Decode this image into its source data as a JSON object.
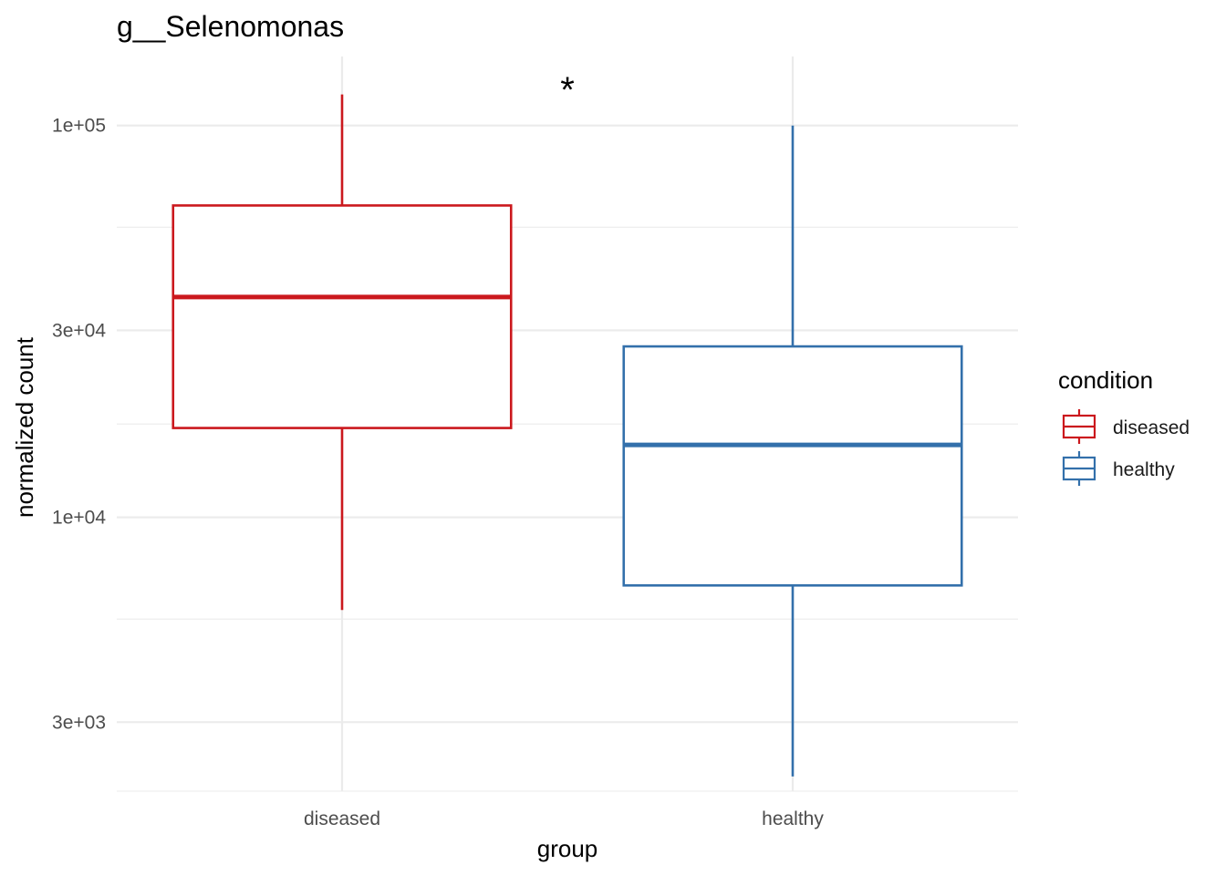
{
  "chart_data": {
    "type": "boxplot",
    "title": "g__Selenomonas",
    "xlabel": "group",
    "ylabel": "normalized count",
    "y_scale": "log10",
    "ylim": [
      2000,
      150000
    ],
    "y_major_ticks": [
      {
        "value": 3000,
        "label": "3e+03"
      },
      {
        "value": 10000,
        "label": "1e+04"
      },
      {
        "value": 30000,
        "label": "3e+04"
      },
      {
        "value": 100000,
        "label": "1e+05"
      }
    ],
    "y_minor_ticks": [
      2000,
      5500,
      17300,
      55000
    ],
    "categories": [
      "diseased",
      "healthy"
    ],
    "boxes": [
      {
        "category": "diseased",
        "whisker_low": 5800,
        "q1": 16900,
        "median": 36500,
        "q3": 62500,
        "whisker_high": 120000,
        "color": "#cb181d"
      },
      {
        "category": "healthy",
        "whisker_low": 2180,
        "q1": 6700,
        "median": 15300,
        "q3": 27300,
        "whisker_high": 100000,
        "color": "#3370ab"
      }
    ],
    "annotation": "*",
    "legend": {
      "title": "condition",
      "position": "right",
      "items": [
        {
          "label": "diseased",
          "color": "#cb181d"
        },
        {
          "label": "healthy",
          "color": "#3370ab"
        }
      ]
    },
    "grid": true
  }
}
